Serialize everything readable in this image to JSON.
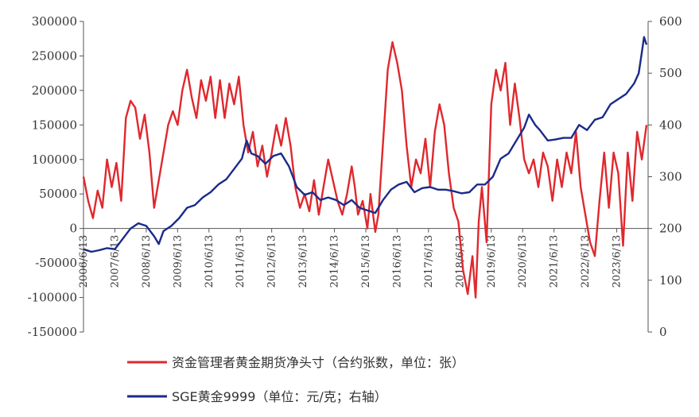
{
  "chart_data": {
    "type": "line",
    "title": "",
    "legend_placement": "bottom",
    "grid": false,
    "x_ticks": [
      "2006/6/13",
      "2007/6/13",
      "2008/6/13",
      "2009/6/13",
      "2010/6/13",
      "2011/6/13",
      "2012/6/13",
      "2013/6/13",
      "2014/6/13",
      "2015/6/13",
      "2016/6/13",
      "2017/6/13",
      "2018/6/13",
      "2019/6/13",
      "2020/6/13",
      "2021/6/13",
      "2022/6/13",
      "2023/6/13"
    ],
    "xlim": [
      "2006/6/13",
      "2024/6/13"
    ],
    "y_left": {
      "ylim": [
        -150000,
        300000
      ],
      "ticks": [
        -150000,
        -100000,
        -50000,
        0,
        50000,
        100000,
        150000,
        200000,
        250000,
        300000
      ],
      "tick_labels": [
        "-150000",
        "-100000",
        "-50000",
        "0",
        "50000",
        "100000",
        "150000",
        "200000",
        "250000",
        "300000"
      ]
    },
    "y_right": {
      "ylim": [
        0,
        600
      ],
      "ticks": [
        0,
        100,
        200,
        300,
        400,
        500,
        600
      ],
      "tick_labels": [
        "0",
        "100",
        "200",
        "300",
        "400",
        "500",
        "600"
      ]
    },
    "series": [
      {
        "name": "资金管理者黄金期货净头寸（合约张数，单位：张）",
        "axis": "left",
        "color": "#e0282e",
        "points": [
          [
            2006.45,
            75000
          ],
          [
            2006.6,
            40000
          ],
          [
            2006.75,
            15000
          ],
          [
            2006.9,
            55000
          ],
          [
            2007.05,
            30000
          ],
          [
            2007.2,
            100000
          ],
          [
            2007.35,
            60000
          ],
          [
            2007.5,
            95000
          ],
          [
            2007.65,
            40000
          ],
          [
            2007.8,
            160000
          ],
          [
            2007.95,
            185000
          ],
          [
            2008.1,
            175000
          ],
          [
            2008.25,
            130000
          ],
          [
            2008.4,
            165000
          ],
          [
            2008.55,
            110000
          ],
          [
            2008.7,
            30000
          ],
          [
            2008.85,
            70000
          ],
          [
            2009.0,
            110000
          ],
          [
            2009.15,
            150000
          ],
          [
            2009.3,
            170000
          ],
          [
            2009.45,
            150000
          ],
          [
            2009.6,
            200000
          ],
          [
            2009.75,
            230000
          ],
          [
            2009.9,
            190000
          ],
          [
            2010.05,
            160000
          ],
          [
            2010.2,
            215000
          ],
          [
            2010.35,
            185000
          ],
          [
            2010.5,
            220000
          ],
          [
            2010.65,
            160000
          ],
          [
            2010.8,
            215000
          ],
          [
            2010.95,
            160000
          ],
          [
            2011.1,
            210000
          ],
          [
            2011.25,
            180000
          ],
          [
            2011.4,
            220000
          ],
          [
            2011.55,
            150000
          ],
          [
            2011.7,
            110000
          ],
          [
            2011.85,
            140000
          ],
          [
            2012.0,
            90000
          ],
          [
            2012.15,
            120000
          ],
          [
            2012.3,
            75000
          ],
          [
            2012.45,
            110000
          ],
          [
            2012.6,
            150000
          ],
          [
            2012.75,
            120000
          ],
          [
            2012.9,
            160000
          ],
          [
            2013.05,
            120000
          ],
          [
            2013.2,
            60000
          ],
          [
            2013.35,
            30000
          ],
          [
            2013.5,
            50000
          ],
          [
            2013.65,
            25000
          ],
          [
            2013.8,
            70000
          ],
          [
            2013.95,
            20000
          ],
          [
            2014.1,
            60000
          ],
          [
            2014.25,
            100000
          ],
          [
            2014.4,
            70000
          ],
          [
            2014.55,
            40000
          ],
          [
            2014.7,
            20000
          ],
          [
            2014.85,
            50000
          ],
          [
            2015.0,
            90000
          ],
          [
            2015.1,
            60000
          ],
          [
            2015.2,
            20000
          ],
          [
            2015.35,
            40000
          ],
          [
            2015.5,
            0
          ],
          [
            2015.6,
            50000
          ],
          [
            2015.75,
            -5000
          ],
          [
            2015.85,
            20000
          ],
          [
            2015.95,
            90000
          ],
          [
            2016.05,
            160000
          ],
          [
            2016.15,
            230000
          ],
          [
            2016.3,
            270000
          ],
          [
            2016.45,
            240000
          ],
          [
            2016.6,
            200000
          ],
          [
            2016.75,
            120000
          ],
          [
            2016.9,
            60000
          ],
          [
            2017.05,
            100000
          ],
          [
            2017.2,
            80000
          ],
          [
            2017.35,
            130000
          ],
          [
            2017.5,
            60000
          ],
          [
            2017.65,
            140000
          ],
          [
            2017.8,
            180000
          ],
          [
            2017.95,
            150000
          ],
          [
            2018.1,
            80000
          ],
          [
            2018.25,
            30000
          ],
          [
            2018.4,
            10000
          ],
          [
            2018.55,
            -60000
          ],
          [
            2018.7,
            -95000
          ],
          [
            2018.85,
            -40000
          ],
          [
            2018.95,
            -100000
          ],
          [
            2019.05,
            10000
          ],
          [
            2019.15,
            60000
          ],
          [
            2019.3,
            -20000
          ],
          [
            2019.45,
            180000
          ],
          [
            2019.6,
            230000
          ],
          [
            2019.75,
            200000
          ],
          [
            2019.9,
            240000
          ],
          [
            2020.05,
            150000
          ],
          [
            2020.2,
            210000
          ],
          [
            2020.35,
            160000
          ],
          [
            2020.5,
            100000
          ],
          [
            2020.65,
            80000
          ],
          [
            2020.8,
            100000
          ],
          [
            2020.95,
            60000
          ],
          [
            2021.1,
            110000
          ],
          [
            2021.25,
            90000
          ],
          [
            2021.4,
            40000
          ],
          [
            2021.55,
            100000
          ],
          [
            2021.7,
            60000
          ],
          [
            2021.85,
            110000
          ],
          [
            2022.0,
            80000
          ],
          [
            2022.15,
            140000
          ],
          [
            2022.3,
            60000
          ],
          [
            2022.45,
            20000
          ],
          [
            2022.6,
            -20000
          ],
          [
            2022.75,
            -40000
          ],
          [
            2022.9,
            40000
          ],
          [
            2023.05,
            110000
          ],
          [
            2023.2,
            30000
          ],
          [
            2023.35,
            110000
          ],
          [
            2023.5,
            80000
          ],
          [
            2023.65,
            -25000
          ],
          [
            2023.8,
            110000
          ],
          [
            2023.95,
            40000
          ],
          [
            2024.1,
            140000
          ],
          [
            2024.25,
            100000
          ],
          [
            2024.4,
            150000
          ]
        ]
      },
      {
        "name": "SGE黄金9999（单位：元/克；右轴）",
        "axis": "right",
        "color": "#1a2a8a",
        "points": [
          [
            2006.45,
            160
          ],
          [
            2006.7,
            155
          ],
          [
            2006.95,
            158
          ],
          [
            2007.2,
            162
          ],
          [
            2007.45,
            160
          ],
          [
            2007.7,
            180
          ],
          [
            2007.95,
            200
          ],
          [
            2008.2,
            210
          ],
          [
            2008.45,
            205
          ],
          [
            2008.7,
            185
          ],
          [
            2008.85,
            170
          ],
          [
            2009.0,
            195
          ],
          [
            2009.25,
            205
          ],
          [
            2009.5,
            220
          ],
          [
            2009.75,
            240
          ],
          [
            2010.0,
            245
          ],
          [
            2010.25,
            260
          ],
          [
            2010.5,
            270
          ],
          [
            2010.75,
            285
          ],
          [
            2011.0,
            295
          ],
          [
            2011.25,
            315
          ],
          [
            2011.5,
            335
          ],
          [
            2011.65,
            370
          ],
          [
            2011.8,
            345
          ],
          [
            2012.0,
            340
          ],
          [
            2012.25,
            325
          ],
          [
            2012.5,
            340
          ],
          [
            2012.75,
            345
          ],
          [
            2013.0,
            320
          ],
          [
            2013.25,
            280
          ],
          [
            2013.5,
            265
          ],
          [
            2013.75,
            270
          ],
          [
            2014.0,
            255
          ],
          [
            2014.25,
            260
          ],
          [
            2014.5,
            255
          ],
          [
            2014.75,
            245
          ],
          [
            2015.0,
            255
          ],
          [
            2015.25,
            240
          ],
          [
            2015.5,
            235
          ],
          [
            2015.75,
            230
          ],
          [
            2016.0,
            255
          ],
          [
            2016.25,
            275
          ],
          [
            2016.5,
            285
          ],
          [
            2016.75,
            290
          ],
          [
            2017.0,
            270
          ],
          [
            2017.25,
            278
          ],
          [
            2017.5,
            280
          ],
          [
            2017.75,
            275
          ],
          [
            2018.0,
            275
          ],
          [
            2018.25,
            272
          ],
          [
            2018.5,
            268
          ],
          [
            2018.75,
            270
          ],
          [
            2019.0,
            285
          ],
          [
            2019.25,
            285
          ],
          [
            2019.5,
            300
          ],
          [
            2019.75,
            335
          ],
          [
            2020.0,
            345
          ],
          [
            2020.25,
            370
          ],
          [
            2020.5,
            395
          ],
          [
            2020.65,
            420
          ],
          [
            2020.85,
            400
          ],
          [
            2021.0,
            390
          ],
          [
            2021.25,
            370
          ],
          [
            2021.5,
            372
          ],
          [
            2021.75,
            375
          ],
          [
            2022.0,
            375
          ],
          [
            2022.25,
            400
          ],
          [
            2022.5,
            390
          ],
          [
            2022.75,
            410
          ],
          [
            2023.0,
            415
          ],
          [
            2023.25,
            440
          ],
          [
            2023.5,
            450
          ],
          [
            2023.75,
            460
          ],
          [
            2024.0,
            480
          ],
          [
            2024.15,
            500
          ],
          [
            2024.25,
            540
          ],
          [
            2024.32,
            570
          ],
          [
            2024.4,
            555
          ]
        ]
      }
    ]
  }
}
